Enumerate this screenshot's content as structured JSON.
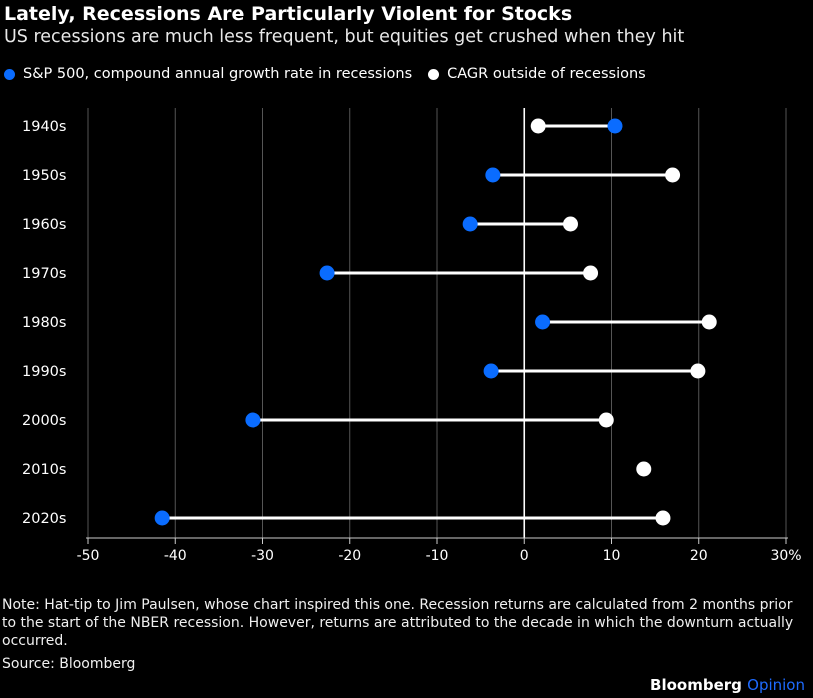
{
  "header": {
    "title": "Lately, Recessions Are Particularly Violent for Stocks",
    "subtitle": "US recessions are much less frequent, but equities get crushed when they hit"
  },
  "legend": [
    {
      "label": "S&P 500, compound annual growth rate in recessions",
      "color": "#0a6cff"
    },
    {
      "label": "CAGR outside of recessions",
      "color": "#ffffff"
    }
  ],
  "chart_data": {
    "type": "dumbbell",
    "categories": [
      "1940s",
      "1950s",
      "1960s",
      "1970s",
      "1980s",
      "1990s",
      "2000s",
      "2010s",
      "2020s"
    ],
    "series": [
      {
        "name": "S&P 500, compound annual growth rate in recessions",
        "color": "#0a6cff",
        "values": [
          10.4,
          -3.6,
          -6.2,
          -22.6,
          2.1,
          -3.8,
          -31.1,
          null,
          -41.5
        ]
      },
      {
        "name": "CAGR outside of recessions",
        "color": "#ffffff",
        "values": [
          1.6,
          17.0,
          5.3,
          7.6,
          21.2,
          19.9,
          9.4,
          13.7,
          15.9
        ]
      }
    ],
    "xlim": [
      -50,
      30
    ],
    "xticks": [
      -50,
      -40,
      -30,
      -20,
      -10,
      0,
      10,
      20,
      30
    ],
    "xtick_labels": [
      "-50",
      "-40",
      "-30",
      "-20",
      "-10",
      "0",
      "10",
      "20",
      "30%"
    ],
    "grid": true
  },
  "footer": {
    "note": "Note: Hat-tip to Jim Paulsen, whose chart inspired this one. Recession returns are calculated from 2 months prior to the start of the NBER recession. However, returns are attributed to the decade in which the downturn actually occurred.",
    "source": "Source: Bloomberg",
    "brand": "Bloomberg",
    "brand_suffix": "Opinion"
  }
}
